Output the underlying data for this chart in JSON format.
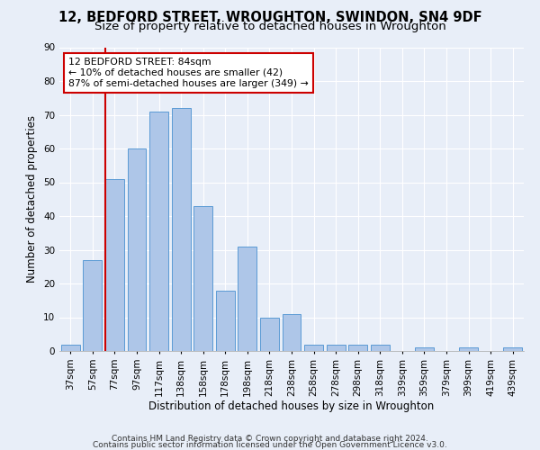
{
  "title1": "12, BEDFORD STREET, WROUGHTON, SWINDON, SN4 9DF",
  "title2": "Size of property relative to detached houses in Wroughton",
  "xlabel": "Distribution of detached houses by size in Wroughton",
  "ylabel": "Number of detached properties",
  "bar_labels": [
    "37sqm",
    "57sqm",
    "77sqm",
    "97sqm",
    "117sqm",
    "138sqm",
    "158sqm",
    "178sqm",
    "198sqm",
    "218sqm",
    "238sqm",
    "258sqm",
    "278sqm",
    "298sqm",
    "318sqm",
    "339sqm",
    "359sqm",
    "379sqm",
    "399sqm",
    "419sqm",
    "439sqm"
  ],
  "bar_values": [
    2,
    27,
    51,
    60,
    71,
    72,
    43,
    18,
    31,
    10,
    11,
    2,
    2,
    2,
    2,
    0,
    1,
    0,
    1,
    0,
    1
  ],
  "bar_color": "#aec6e8",
  "bar_edge_color": "#5b9bd5",
  "background_color": "#e8eef8",
  "grid_color": "#ffffff",
  "vline_color": "#cc0000",
  "vline_index": 1.58,
  "annotation_text": "12 BEDFORD STREET: 84sqm\n← 10% of detached houses are smaller (42)\n87% of semi-detached houses are larger (349) →",
  "annotation_box_color": "#ffffff",
  "annotation_box_edge": "#cc0000",
  "ylim": [
    0,
    90
  ],
  "yticks": [
    0,
    10,
    20,
    30,
    40,
    50,
    60,
    70,
    80,
    90
  ],
  "footnote1": "Contains HM Land Registry data © Crown copyright and database right 2024.",
  "footnote2": "Contains public sector information licensed under the Open Government Licence v3.0.",
  "title_fontsize": 10.5,
  "subtitle_fontsize": 9.5,
  "tick_fontsize": 7.5,
  "ylabel_fontsize": 8.5,
  "xlabel_fontsize": 8.5,
  "footnote_fontsize": 6.5
}
